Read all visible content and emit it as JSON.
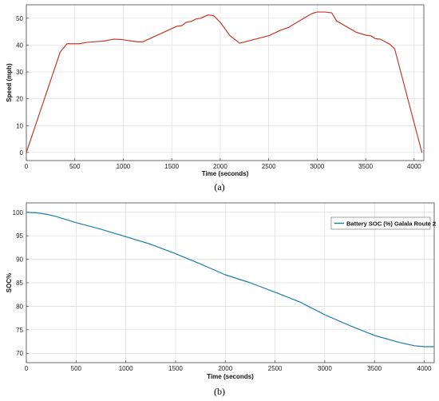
{
  "chart_data": [
    {
      "type": "line",
      "caption": "(a)",
      "xlabel": "Time (seconds)",
      "ylabel": "Speed (mph)",
      "xlim": [
        0,
        4100
      ],
      "ylim": [
        -3,
        55
      ],
      "grid": true,
      "xticks": [
        0,
        500,
        1000,
        1500,
        2000,
        2500,
        3000,
        3500,
        4000
      ],
      "yticks": [
        0,
        10,
        20,
        30,
        40,
        50
      ],
      "series": [
        {
          "color": "#c0392b",
          "x": [
            0,
            350,
            420,
            550,
            620,
            800,
            900,
            1000,
            1050,
            1150,
            1200,
            1550,
            1600,
            1650,
            1700,
            1750,
            1800,
            1870,
            1930,
            2000,
            2100,
            2200,
            2500,
            2620,
            2700,
            2900,
            2950,
            3000,
            3080,
            3150,
            3200,
            3400,
            3500,
            3550,
            3600,
            3650,
            3750,
            3800,
            4080
          ],
          "y": [
            0,
            37.5,
            40.5,
            40.5,
            41,
            41.5,
            42.2,
            42,
            41.7,
            41.2,
            41.2,
            47,
            47.2,
            48.5,
            48.8,
            49.7,
            50,
            51.2,
            51,
            48.5,
            43.5,
            40.7,
            43.5,
            45.5,
            46.5,
            50.8,
            51.8,
            52.3,
            52.3,
            52,
            49,
            44.8,
            43.7,
            43.5,
            42.4,
            42.2,
            40.3,
            38.5,
            0
          ]
        }
      ]
    },
    {
      "type": "line",
      "caption": "(b)",
      "xlabel": "Time (seconds)",
      "ylabel": "SOC%",
      "xlim": [
        0,
        4100
      ],
      "ylim": [
        68,
        102
      ],
      "grid": true,
      "legend": "top-right",
      "xticks": [
        0,
        500,
        1000,
        1500,
        2000,
        2500,
        3000,
        3500,
        4000
      ],
      "yticks": [
        70,
        75,
        80,
        85,
        90,
        95,
        100
      ],
      "series": [
        {
          "name": "Battery SOC (%) Galala Route 2",
          "color": "#1f7ea1",
          "x": [
            0,
            100,
            200,
            300,
            500,
            750,
            1000,
            1250,
            1500,
            1750,
            2000,
            2250,
            2500,
            2750,
            3000,
            3250,
            3500,
            3750,
            3900,
            4000,
            4100
          ],
          "y": [
            100,
            99.9,
            99.6,
            99.1,
            97.8,
            96.4,
            94.8,
            93.2,
            91.2,
            89.0,
            86.7,
            85.0,
            83.0,
            80.9,
            78.2,
            75.9,
            73.8,
            72.3,
            71.6,
            71.4,
            71.4
          ]
        }
      ]
    }
  ]
}
